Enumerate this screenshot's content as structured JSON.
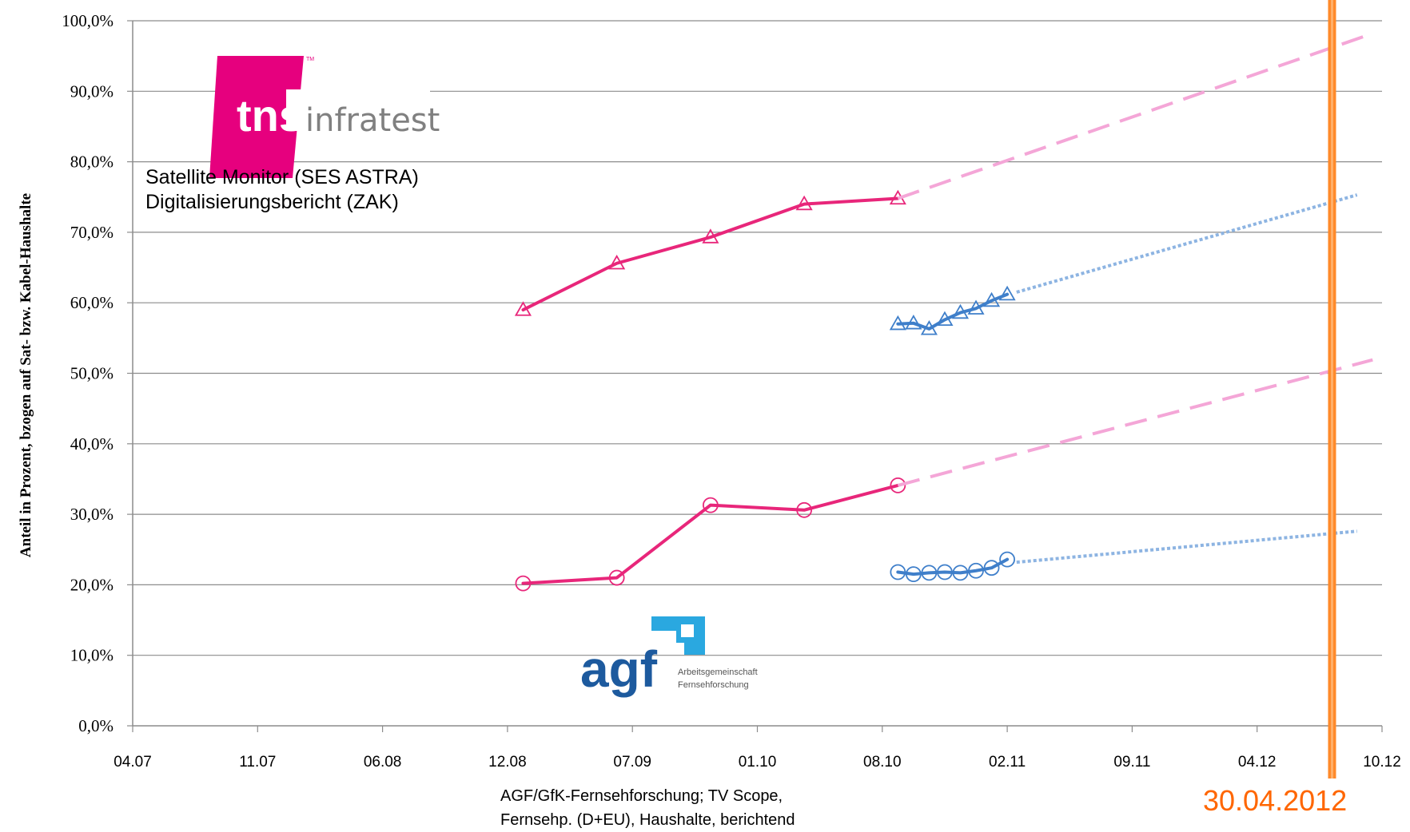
{
  "chart_data": {
    "type": "line",
    "ylabel": "Anteil in Prozent, bzogen auf Sat- bzw. Kabel-Haushalte",
    "ylim": [
      0,
      100
    ],
    "yticks": [
      "0,0%",
      "10,0%",
      "20,0%",
      "30,0%",
      "40,0%",
      "50,0%",
      "60,0%",
      "70,0%",
      "80,0%",
      "90,0%",
      "100,0%"
    ],
    "xticks": [
      "04.07",
      "11.07",
      "06.08",
      "12.08",
      "07.09",
      "01.10",
      "08.10",
      "02.11",
      "09.11",
      "04.12",
      "10.12"
    ],
    "grid": "horizontal",
    "series": [
      {
        "marker": "triangle",
        "color": "#e8267a",
        "style": "solid",
        "x": [
          12.5,
          15.5,
          18.5,
          21.5,
          24.5
        ],
        "y": [
          59.0,
          65.6,
          69.3,
          74.0,
          74.8
        ]
      },
      {
        "marker": "none",
        "color": "#f4a6d7",
        "style": "dashed",
        "x": [
          24.5,
          39.7
        ],
        "y": [
          74.8,
          98.2
        ]
      },
      {
        "marker": "circle",
        "color": "#e8267a",
        "style": "solid",
        "x": [
          12.5,
          15.5,
          18.5,
          21.5,
          24.5
        ],
        "y": [
          20.2,
          21.0,
          31.3,
          30.6,
          34.1
        ]
      },
      {
        "marker": "none",
        "color": "#f4a6d7",
        "style": "dashed",
        "x": [
          24.5,
          39.7
        ],
        "y": [
          34.1,
          51.9
        ]
      },
      {
        "marker": "triangle",
        "color": "#3f7fca",
        "style": "solid",
        "x": [
          24.5,
          25.0,
          25.5,
          26.0,
          26.5,
          27.0,
          27.5,
          28.0
        ],
        "y": [
          57.0,
          57.1,
          56.3,
          57.6,
          58.6,
          59.2,
          60.3,
          61.2
        ]
      },
      {
        "marker": "none",
        "color": "#8db4e2",
        "style": "dotted",
        "x": [
          28.3,
          39.2
        ],
        "y": [
          61.5,
          75.3
        ]
      },
      {
        "marker": "circle",
        "color": "#3f7fca",
        "style": "solid",
        "x": [
          24.5,
          25.0,
          25.5,
          26.0,
          26.5,
          27.0,
          27.5,
          28.0
        ],
        "y": [
          21.8,
          21.5,
          21.7,
          21.8,
          21.7,
          22.0,
          22.4,
          23.6
        ]
      },
      {
        "marker": "none",
        "color": "#8db4e2",
        "style": "dotted",
        "x": [
          28.3,
          39.2
        ],
        "y": [
          23.2,
          27.6
        ]
      }
    ],
    "reference_line": {
      "x": 38.4,
      "color": "#ff8a2a",
      "label": "30.04.2012"
    }
  },
  "captions": {
    "source_left_1": "Satellite Monitor (SES ASTRA)",
    "source_left_2": "Digitalisierungsbericht (ZAK)",
    "source_bottom_1": "AGF/GfK-Fernsehforschung; TV Scope,",
    "source_bottom_2": "Fernsehp. (D+EU), Haushalte, berichtend"
  },
  "logos": {
    "tns_text": "tns",
    "tns_suffix": "infratest",
    "tns_tm": "TM",
    "tns_color": "#e6007e",
    "agf_text": "agf",
    "agf_sub_1": "Arbeitsgemeinschaft",
    "agf_sub_2": "Fernsehforschung",
    "agf_color": "#1d5a9e",
    "agf_accent": "#2aa8e0"
  }
}
